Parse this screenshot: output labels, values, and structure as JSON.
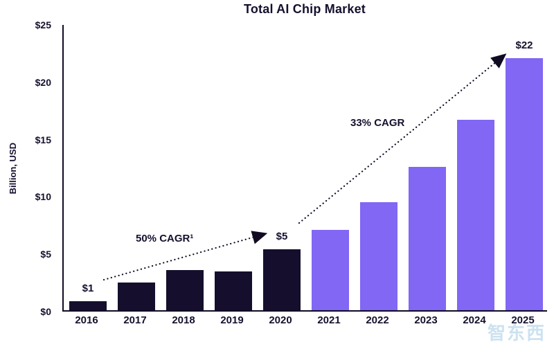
{
  "chart_data": {
    "type": "bar",
    "title": "Total AI Chip Market",
    "ylabel": "Billion, USD",
    "xlabel": "",
    "categories": [
      "2016",
      "2017",
      "2018",
      "2019",
      "2020",
      "2021",
      "2022",
      "2023",
      "2024",
      "2025"
    ],
    "values": [
      0.8,
      2.4,
      3.5,
      3.4,
      5.3,
      7.0,
      9.4,
      12.5,
      16.6,
      22
    ],
    "ylim": [
      0,
      25
    ],
    "yticks": [
      {
        "value": 0,
        "label": "$0"
      },
      {
        "value": 5,
        "label": "$5"
      },
      {
        "value": 10,
        "label": "$10"
      },
      {
        "value": 15,
        "label": "$15"
      },
      {
        "value": 20,
        "label": "$20"
      },
      {
        "value": 25,
        "label": "$25"
      }
    ],
    "grid": false,
    "legend": false,
    "split_index": 5,
    "colors": {
      "early_bars": "#150f2d",
      "late_bars": "#8266f4",
      "text": "#16102e",
      "arrow": "#100b22"
    },
    "annotations": [
      {
        "year": "2016",
        "label": "$1"
      },
      {
        "year": "2020",
        "label": "$5"
      },
      {
        "year": "2025",
        "label": "$22"
      }
    ],
    "cagr_labels": [
      {
        "text": "50% CAGR¹"
      },
      {
        "text": "33% CAGR"
      }
    ]
  },
  "watermark": {
    "text": "智东西"
  }
}
